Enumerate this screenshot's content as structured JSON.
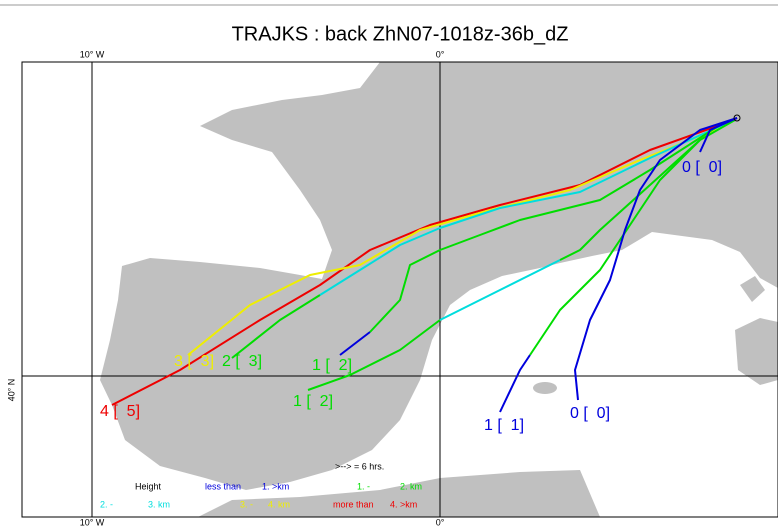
{
  "header": {
    "title": "TRAJKS : back ZhN07-1018z-36b_dZ"
  },
  "axes": {
    "top": [
      "10° W",
      "0°"
    ],
    "bottom": [
      "10° W",
      "0°"
    ],
    "left": [
      "40° N"
    ]
  },
  "trajectory_labels": [
    "0 [  0]",
    "0 [  0]",
    "1 [  1]",
    "1 [  2]",
    "1 [  2]",
    "2 [  3]",
    "3 [  3]",
    "4 [  5]"
  ],
  "legend": {
    "note": ">--> = 6 hrs.",
    "heading": "Height",
    "row1": [
      "less than",
      "1. >km",
      "1. -",
      "2. km"
    ],
    "row2": [
      "2. -",
      "3. km",
      "3. -",
      "4. km",
      "more than",
      "4. >km"
    ]
  }
}
